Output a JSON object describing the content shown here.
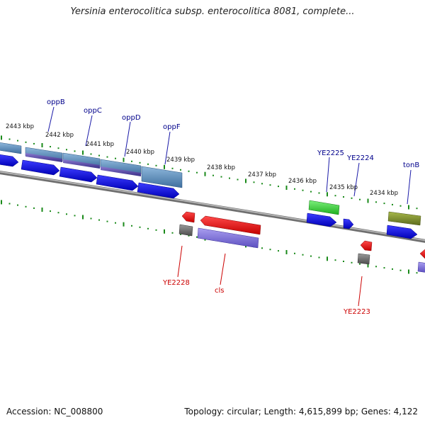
{
  "header": {
    "title": "Yersinia enterocolitica subsp. enterocolitica 8081, complete..."
  },
  "footer": {
    "accession": "Accession: NC_008800",
    "summary": "Topology: circular; Length: 4,615,899 bp; Genes: 4,122"
  },
  "scale": {
    "ticks": [
      "2443 kbp",
      "2442 kbp",
      "2441 kbp",
      "2440 kbp",
      "2439 kbp",
      "2438 kbp",
      "2437 kbp",
      "2436 kbp",
      "2435 kbp",
      "2434 kbp"
    ]
  },
  "genes": {
    "forward_labels": [
      "oppB",
      "oppC",
      "oppD",
      "oppF",
      "YE2225",
      "YE2224",
      "tonB"
    ],
    "reverse_labels": [
      "YE2228",
      "cls",
      "YE2223"
    ]
  },
  "colors": {
    "cds_blue": "#0000ee",
    "forward_label": "#00008b",
    "reverse_label": "#cc0000",
    "tick_green": "#1a8a1a",
    "backbone": "#888888"
  }
}
